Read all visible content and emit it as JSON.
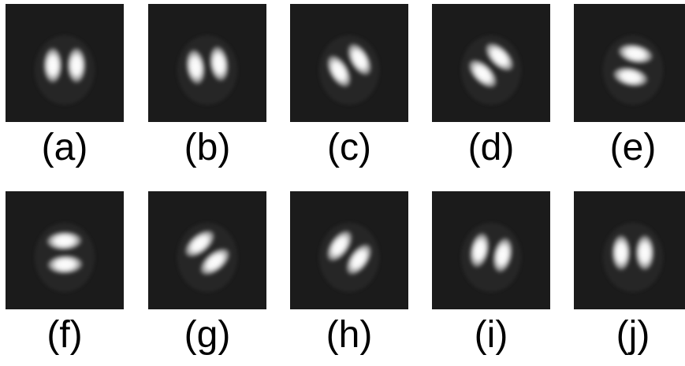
{
  "panels": [
    {
      "label": "(a)",
      "angle_deg": 0
    },
    {
      "label": "(b)",
      "angle_deg": 8
    },
    {
      "label": "(c)",
      "angle_deg": 30
    },
    {
      "label": "(d)",
      "angle_deg": 45
    },
    {
      "label": "(e)",
      "angle_deg": 78
    },
    {
      "label": "(f)",
      "angle_deg": 92
    },
    {
      "label": "(g)",
      "angle_deg": 130
    },
    {
      "label": "(h)",
      "angle_deg": 145
    },
    {
      "label": "(i)",
      "angle_deg": 168
    },
    {
      "label": "(j)",
      "angle_deg": 180
    }
  ],
  "colors": {
    "panel_background": "#1b1b1b",
    "lobe": "#ffffff",
    "label": "#000000"
  }
}
